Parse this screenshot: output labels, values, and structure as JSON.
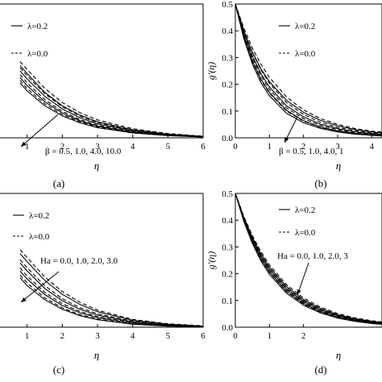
{
  "figure": {
    "panels": [
      {
        "caption": "(a)",
        "xlabel": "η",
        "ylabel": "",
        "legend": [
          {
            "label": "λ=0.2",
            "style": "solid"
          },
          {
            "label": "λ=0.0",
            "style": "dashed"
          }
        ],
        "annotation": "β = 0.5, 1.0, 4.0, 10.0",
        "arrow": "down"
      },
      {
        "caption": "(b)",
        "xlabel": "η",
        "ylabel": "g'(η)",
        "legend": [
          {
            "label": "λ=0.2",
            "style": "solid"
          },
          {
            "label": "λ=0.0",
            "style": "dashed"
          }
        ],
        "annotation": "β = 0.5, 1.0, 4.0, 1",
        "arrow": "down"
      },
      {
        "caption": "(c)",
        "xlabel": "η",
        "ylabel": "",
        "legend": [
          {
            "label": "λ=0.2",
            "style": "solid"
          },
          {
            "label": "λ=0.0",
            "style": "dashed"
          }
        ],
        "annotation": "Ha = 0.0, 1.0, 2.0, 3.0",
        "arrow": "up"
      },
      {
        "caption": "(d)",
        "xlabel": "η",
        "ylabel": "g'(η)",
        "legend": [
          {
            "label": "λ=0.2",
            "style": "solid"
          },
          {
            "label": "λ=0.0",
            "style": "dashed"
          }
        ],
        "annotation": "Ha = 0.0, 1.0, 2.0, 3",
        "arrow": "up"
      }
    ]
  },
  "chart_data": [
    {
      "type": "line",
      "panel": "(a)",
      "xlabel": "η",
      "ylabel": "",
      "xlim": [
        0,
        6
      ],
      "ylim": [
        0,
        0.5
      ],
      "x_ticks": [
        "1",
        "2",
        "3",
        "4",
        "5",
        "6"
      ],
      "y_ticks": [],
      "x": [
        0.8,
        1,
        1.5,
        2,
        2.5,
        3,
        4,
        5,
        6
      ],
      "series": [
        {
          "name": "λ=0.2, β=0.5",
          "style": "solid",
          "values": [
            0.27,
            0.24,
            0.17,
            0.12,
            0.085,
            0.06,
            0.03,
            0.014,
            0.005
          ]
        },
        {
          "name": "λ=0.0, β=0.5",
          "style": "dashed",
          "values": [
            0.285,
            0.255,
            0.185,
            0.132,
            0.094,
            0.067,
            0.034,
            0.016,
            0.006
          ]
        },
        {
          "name": "λ=0.2, β=1.0",
          "style": "solid",
          "values": [
            0.25,
            0.22,
            0.155,
            0.108,
            0.075,
            0.052,
            0.026,
            0.012,
            0.004
          ]
        },
        {
          "name": "λ=0.0, β=1.0",
          "style": "dashed",
          "values": [
            0.262,
            0.232,
            0.165,
            0.116,
            0.081,
            0.057,
            0.028,
            0.013,
            0.005
          ]
        },
        {
          "name": "λ=0.2, β=4.0",
          "style": "solid",
          "values": [
            0.225,
            0.195,
            0.135,
            0.093,
            0.064,
            0.044,
            0.021,
            0.01,
            0.003
          ]
        },
        {
          "name": "λ=0.0, β=4.0",
          "style": "dashed",
          "values": [
            0.236,
            0.205,
            0.143,
            0.099,
            0.068,
            0.047,
            0.023,
            0.011,
            0.004
          ]
        },
        {
          "name": "λ=0.2, β=10.0",
          "style": "solid",
          "values": [
            0.205,
            0.175,
            0.12,
            0.082,
            0.056,
            0.038,
            0.018,
            0.008,
            0.003
          ]
        },
        {
          "name": "λ=0.0, β=10.0",
          "style": "dashed",
          "values": [
            0.215,
            0.184,
            0.127,
            0.087,
            0.06,
            0.041,
            0.02,
            0.009,
            0.003
          ]
        }
      ]
    },
    {
      "type": "line",
      "panel": "(b)",
      "xlabel": "η",
      "ylabel": "g'(η)",
      "xlim": [
        0,
        4.3
      ],
      "ylim": [
        0,
        0.5
      ],
      "x_ticks": [
        "0",
        "1",
        "2",
        "3",
        "4"
      ],
      "y_ticks": [
        "0.0",
        "0.1",
        "0.2",
        "0.3",
        "0.4",
        "0.5"
      ],
      "x": [
        0,
        0.25,
        0.5,
        0.75,
        1,
        1.5,
        2,
        2.5,
        3,
        3.5,
        4,
        4.3
      ],
      "series": [
        {
          "name": "λ=0.2, β=0.5",
          "style": "solid",
          "values": [
            0.5,
            0.4,
            0.32,
            0.258,
            0.21,
            0.14,
            0.095,
            0.065,
            0.045,
            0.031,
            0.022,
            0.018
          ]
        },
        {
          "name": "λ=0.0, β=0.5",
          "style": "dashed",
          "values": [
            0.5,
            0.41,
            0.335,
            0.275,
            0.226,
            0.153,
            0.104,
            0.072,
            0.05,
            0.035,
            0.025,
            0.021
          ]
        },
        {
          "name": "λ=0.2, β=1.0",
          "style": "solid",
          "values": [
            0.5,
            0.39,
            0.305,
            0.24,
            0.19,
            0.12,
            0.078,
            0.051,
            0.034,
            0.023,
            0.016,
            0.013
          ]
        },
        {
          "name": "λ=0.0, β=1.0",
          "style": "dashed",
          "values": [
            0.5,
            0.398,
            0.318,
            0.254,
            0.204,
            0.132,
            0.087,
            0.058,
            0.039,
            0.027,
            0.019,
            0.015
          ]
        },
        {
          "name": "λ=0.2, β=4.0",
          "style": "solid",
          "values": [
            0.5,
            0.378,
            0.288,
            0.22,
            0.17,
            0.103,
            0.064,
            0.04,
            0.026,
            0.017,
            0.012,
            0.009
          ]
        },
        {
          "name": "λ=0.0, β=4.0",
          "style": "dashed",
          "values": [
            0.5,
            0.386,
            0.298,
            0.232,
            0.181,
            0.112,
            0.071,
            0.046,
            0.03,
            0.02,
            0.014,
            0.011
          ]
        },
        {
          "name": "λ=0.2, β=10.0",
          "style": "solid",
          "values": [
            0.5,
            0.37,
            0.276,
            0.207,
            0.157,
            0.092,
            0.056,
            0.035,
            0.022,
            0.014,
            0.009,
            0.007
          ]
        },
        {
          "name": "λ=0.0, β=10.0",
          "style": "dashed",
          "values": [
            0.5,
            0.377,
            0.285,
            0.217,
            0.167,
            0.1,
            0.062,
            0.039,
            0.025,
            0.016,
            0.011,
            0.009
          ]
        }
      ]
    },
    {
      "type": "line",
      "panel": "(c)",
      "xlabel": "η",
      "ylabel": "",
      "xlim": [
        0,
        6
      ],
      "ylim": [
        0,
        0.5
      ],
      "x_ticks": [
        "1",
        "2",
        "3",
        "4",
        "5",
        "6"
      ],
      "y_ticks": [],
      "x": [
        0.8,
        1,
        1.5,
        2,
        2.5,
        3,
        4,
        5,
        6
      ],
      "series": [
        {
          "name": "λ=0.2, Ha=0.0",
          "style": "solid",
          "values": [
            0.275,
            0.245,
            0.175,
            0.123,
            0.085,
            0.058,
            0.026,
            0.011,
            0.004
          ]
        },
        {
          "name": "λ=0.0, Ha=0.0",
          "style": "dashed",
          "values": [
            0.29,
            0.26,
            0.188,
            0.133,
            0.093,
            0.064,
            0.029,
            0.013,
            0.005
          ]
        },
        {
          "name": "λ=0.2, Ha=1.0",
          "style": "solid",
          "values": [
            0.24,
            0.21,
            0.145,
            0.099,
            0.067,
            0.045,
            0.02,
            0.008,
            0.003
          ]
        },
        {
          "name": "λ=0.0, Ha=1.0",
          "style": "dashed",
          "values": [
            0.253,
            0.222,
            0.155,
            0.107,
            0.073,
            0.05,
            0.022,
            0.009,
            0.004
          ]
        },
        {
          "name": "λ=0.2, Ha=2.0",
          "style": "solid",
          "values": [
            0.21,
            0.18,
            0.122,
            0.081,
            0.054,
            0.036,
            0.015,
            0.006,
            0.002
          ]
        },
        {
          "name": "λ=0.0, Ha=2.0",
          "style": "dashed",
          "values": [
            0.222,
            0.191,
            0.13,
            0.088,
            0.059,
            0.039,
            0.017,
            0.007,
            0.003
          ]
        },
        {
          "name": "λ=0.2, Ha=3.0",
          "style": "solid",
          "values": [
            0.185,
            0.155,
            0.103,
            0.067,
            0.043,
            0.028,
            0.011,
            0.004,
            0.002
          ]
        },
        {
          "name": "λ=0.0, Ha=3.0",
          "style": "dashed",
          "values": [
            0.195,
            0.165,
            0.11,
            0.072,
            0.047,
            0.031,
            0.012,
            0.005,
            0.002
          ]
        }
      ]
    },
    {
      "type": "line",
      "panel": "(d)",
      "xlabel": "η",
      "ylabel": "g'(η)",
      "xlim": [
        0,
        4.3
      ],
      "ylim": [
        0,
        0.5
      ],
      "x_ticks": [
        "0",
        "1",
        "2"
      ],
      "y_ticks": [
        "0.0",
        "0.1",
        "0.2",
        "0.3",
        "0.4",
        "0.5"
      ],
      "x": [
        0,
        0.25,
        0.5,
        0.75,
        1,
        1.5,
        2,
        2.5,
        3,
        3.5,
        4,
        4.3
      ],
      "series": [
        {
          "name": "λ=0.2, Ha=0.0",
          "style": "solid",
          "values": [
            0.5,
            0.41,
            0.335,
            0.275,
            0.225,
            0.152,
            0.103,
            0.07,
            0.047,
            0.032,
            0.022,
            0.018
          ]
        },
        {
          "name": "λ=0.0, Ha=0.0",
          "style": "dashed",
          "values": [
            0.5,
            0.414,
            0.342,
            0.283,
            0.233,
            0.159,
            0.109,
            0.075,
            0.051,
            0.035,
            0.024,
            0.02
          ]
        },
        {
          "name": "λ=0.2, Ha=1.0",
          "style": "solid",
          "values": [
            0.5,
            0.405,
            0.328,
            0.266,
            0.216,
            0.144,
            0.096,
            0.064,
            0.043,
            0.029,
            0.019,
            0.015
          ]
        },
        {
          "name": "λ=0.0, Ha=1.0",
          "style": "dashed",
          "values": [
            0.5,
            0.409,
            0.334,
            0.273,
            0.223,
            0.15,
            0.101,
            0.068,
            0.046,
            0.031,
            0.021,
            0.017
          ]
        },
        {
          "name": "λ=0.2, Ha=2.0",
          "style": "solid",
          "values": [
            0.5,
            0.4,
            0.32,
            0.257,
            0.207,
            0.135,
            0.089,
            0.058,
            0.038,
            0.025,
            0.016,
            0.013
          ]
        },
        {
          "name": "λ=0.0, Ha=2.0",
          "style": "dashed",
          "values": [
            0.5,
            0.404,
            0.326,
            0.264,
            0.214,
            0.141,
            0.093,
            0.062,
            0.041,
            0.027,
            0.018,
            0.014
          ]
        },
        {
          "name": "λ=0.2, Ha=3.0",
          "style": "solid",
          "values": [
            0.5,
            0.395,
            0.313,
            0.248,
            0.198,
            0.127,
            0.082,
            0.053,
            0.034,
            0.022,
            0.014,
            0.011
          ]
        },
        {
          "name": "λ=0.0, Ha=3.0",
          "style": "dashed",
          "values": [
            0.5,
            0.399,
            0.319,
            0.255,
            0.205,
            0.133,
            0.086,
            0.056,
            0.037,
            0.024,
            0.015,
            0.012
          ]
        }
      ]
    }
  ]
}
